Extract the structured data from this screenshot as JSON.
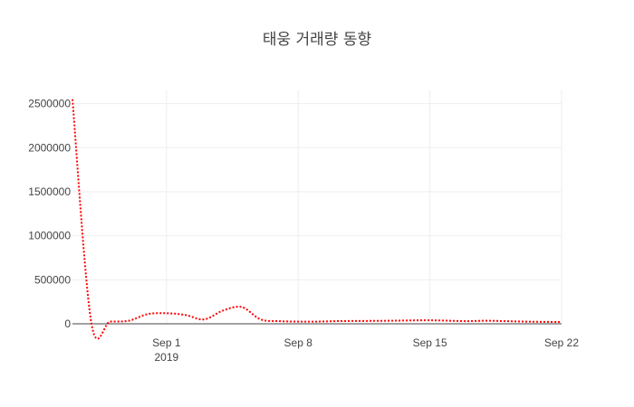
{
  "chart_data": {
    "type": "line",
    "title": "태웅 거래량 동향",
    "xlabel": "",
    "ylabel": "",
    "x_axis_type": "date",
    "xlim": [
      "2019-08-27",
      "2019-09-22"
    ],
    "ylim": [
      0,
      2650000
    ],
    "grid": true,
    "legend": "none",
    "y_ticks": [
      {
        "value": 0,
        "label": "0"
      },
      {
        "value": 500000,
        "label": "500000"
      },
      {
        "value": 1000000,
        "label": "1000000"
      },
      {
        "value": 1500000,
        "label": "1500000"
      },
      {
        "value": 2000000,
        "label": "2000000"
      },
      {
        "value": 2500000,
        "label": "2500000"
      }
    ],
    "x_ticks": [
      {
        "date": "2019-09-01",
        "label": "Sep 1",
        "sublabel": "2019"
      },
      {
        "date": "2019-09-08",
        "label": "Sep 8",
        "sublabel": ""
      },
      {
        "date": "2019-09-15",
        "label": "Sep 15",
        "sublabel": ""
      },
      {
        "date": "2019-09-22",
        "label": "Sep 22",
        "sublabel": ""
      }
    ],
    "series": [
      {
        "color": "#ff0000",
        "line_style": "dot",
        "x": [
          "2019-08-27",
          "2019-08-28",
          "2019-08-29",
          "2019-08-30",
          "2019-08-31",
          "2019-09-01",
          "2019-09-02",
          "2019-09-03",
          "2019-09-04",
          "2019-09-05",
          "2019-09-06",
          "2019-09-07",
          "2019-09-08",
          "2019-09-09",
          "2019-09-10",
          "2019-09-11",
          "2019-09-12",
          "2019-09-13",
          "2019-09-14",
          "2019-09-15",
          "2019-09-16",
          "2019-09-17",
          "2019-09-18",
          "2019-09-19",
          "2019-09-20",
          "2019-09-21",
          "2019-09-22"
        ],
        "y": [
          2550000,
          15000,
          25000,
          35000,
          110000,
          120000,
          100000,
          50000,
          150000,
          190000,
          50000,
          30000,
          25000,
          25000,
          30000,
          32000,
          33000,
          35000,
          38000,
          40000,
          35000,
          30000,
          35000,
          30000,
          25000,
          22000,
          20000
        ]
      }
    ]
  }
}
